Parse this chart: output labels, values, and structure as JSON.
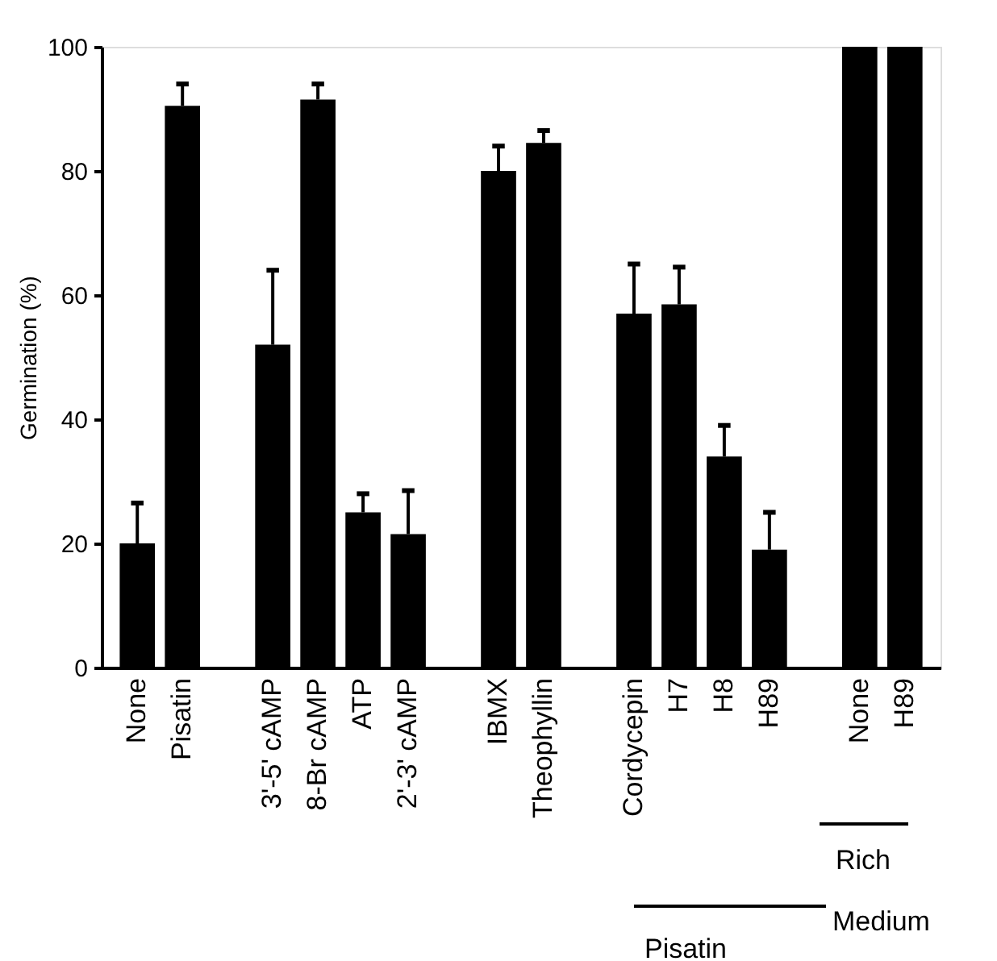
{
  "chart_data": {
    "type": "bar",
    "ylabel": "Germination (%)",
    "categories": [
      "None",
      "Pisatin",
      null,
      "3'-5' cAMP",
      "8-Br cAMP",
      "ATP",
      "2'-3' cAMP",
      null,
      "IBMX",
      "Theophyllin",
      null,
      "Cordycepin",
      "H7",
      "H8",
      "H89",
      null,
      "None",
      "H89"
    ],
    "values": [
      20,
      90.5,
      null,
      52,
      91.5,
      25,
      21.5,
      null,
      80,
      84.5,
      null,
      57,
      58.5,
      34,
      19,
      null,
      100,
      100
    ],
    "errors": [
      [
        20,
        26.5
      ],
      [
        90.5,
        94
      ],
      null,
      [
        52,
        64
      ],
      [
        91.5,
        94
      ],
      [
        25,
        28
      ],
      [
        21.5,
        28.5
      ],
      null,
      [
        80,
        84
      ],
      [
        84.5,
        86.5
      ],
      null,
      [
        57,
        65
      ],
      [
        58.5,
        64.5
      ],
      [
        34,
        39
      ],
      [
        19,
        25
      ],
      null,
      null,
      null
    ],
    "color": "#000000",
    "ylim": [
      0,
      100
    ],
    "yticks": [
      0,
      20,
      40,
      60,
      80,
      100
    ],
    "annotations": [
      "Pisatin",
      "Rich",
      "Medium"
    ],
    "grid": false
  }
}
